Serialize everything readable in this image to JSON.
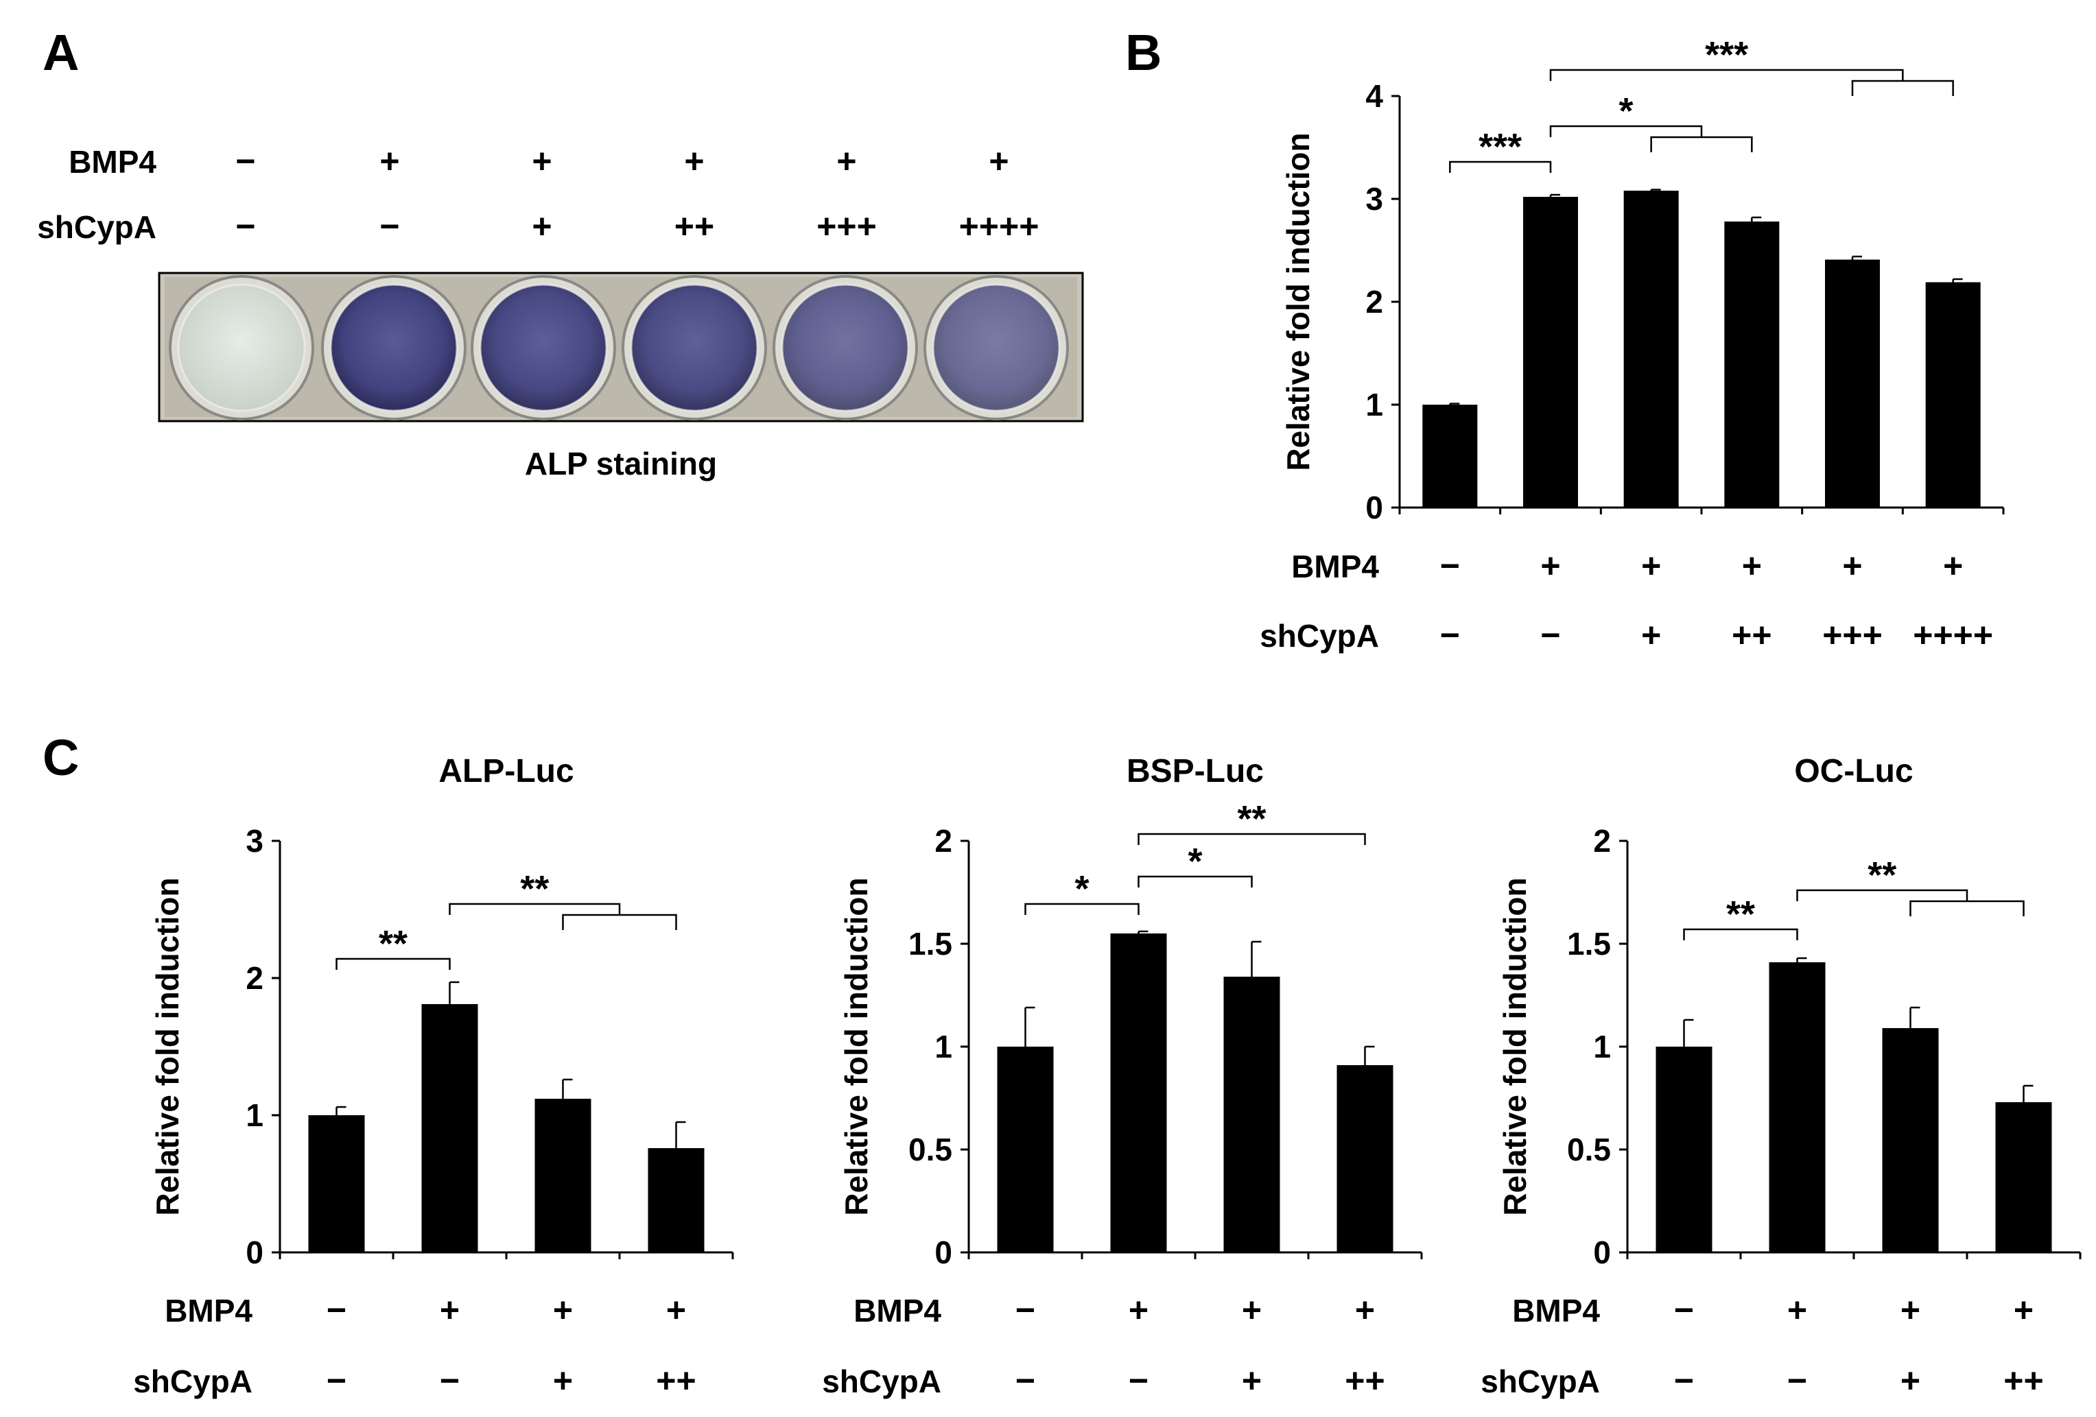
{
  "panels": {
    "A": "A",
    "B": "B",
    "C": "C"
  },
  "row_labels": {
    "bmp4": "BMP4",
    "shcypa": "shCypA"
  },
  "signs6": {
    "bmp4": [
      "−",
      "+",
      "+",
      "+",
      "+",
      "+"
    ],
    "shcypa": [
      "−",
      "−",
      "+",
      "++",
      "+++",
      "++++"
    ]
  },
  "signs4": {
    "bmp4": [
      "−",
      "+",
      "+",
      "+"
    ],
    "shcypa": [
      "−",
      "−",
      "+",
      "++"
    ]
  },
  "panel_a": {
    "caption": "ALP staining",
    "well_intensity": [
      0.0,
      1.0,
      0.95,
      0.9,
      0.65,
      0.55
    ]
  },
  "colors": {
    "bar": "#000000",
    "background": "#ffffff",
    "stain": "#4a4a86"
  },
  "chart_data": [
    {
      "id": "B",
      "type": "bar",
      "title": "",
      "ylabel": "Relative fold induction",
      "ylim": [
        0,
        4
      ],
      "yticks": [
        0,
        1,
        2,
        3,
        4
      ],
      "ytick_labels": [
        "0",
        "1",
        "2",
        "3",
        "4"
      ],
      "categories": [
        "−/−",
        "+/−",
        "+/+",
        "+/++",
        "+/+++",
        "+/++++"
      ],
      "values": [
        1.0,
        3.02,
        3.08,
        2.78,
        2.41,
        2.19
      ],
      "errors": [
        0.01,
        0.02,
        0.01,
        0.04,
        0.03,
        0.03
      ],
      "significance": [
        {
          "label": "***",
          "from": [
            0
          ],
          "to": [
            1
          ]
        },
        {
          "label": "*",
          "from": [
            1
          ],
          "to": [
            2,
            3
          ]
        },
        {
          "label": "***",
          "from": [
            1
          ],
          "to": [
            4,
            5
          ]
        }
      ]
    },
    {
      "id": "C1",
      "type": "bar",
      "title": "ALP-Luc",
      "ylabel": "Relative fold induction",
      "ylim": [
        0,
        3
      ],
      "yticks": [
        0,
        1,
        2,
        3
      ],
      "ytick_labels": [
        "0",
        "1",
        "2",
        "3"
      ],
      "categories": [
        "−/−",
        "+/−",
        "+/+",
        "+/++"
      ],
      "values": [
        1.0,
        1.81,
        1.12,
        0.76
      ],
      "errors": [
        0.06,
        0.16,
        0.14,
        0.19
      ],
      "significance": [
        {
          "label": "**",
          "from": [
            0
          ],
          "to": [
            1
          ]
        },
        {
          "label": "**",
          "from": [
            1
          ],
          "to": [
            2,
            3
          ]
        }
      ]
    },
    {
      "id": "C2",
      "type": "bar",
      "title": "BSP-Luc",
      "ylabel": "Relative fold induction",
      "ylim": [
        0,
        2
      ],
      "yticks": [
        0,
        0.5,
        1,
        1.5,
        2
      ],
      "ytick_labels": [
        "0",
        "0.5",
        "1",
        "1.5",
        "2"
      ],
      "categories": [
        "−/−",
        "+/−",
        "+/+",
        "+/++"
      ],
      "values": [
        1.0,
        1.55,
        1.34,
        0.91
      ],
      "errors": [
        0.19,
        0.01,
        0.17,
        0.09
      ],
      "significance": [
        {
          "label": "*",
          "from": [
            0
          ],
          "to": [
            1
          ]
        },
        {
          "label": "*",
          "from": [
            1
          ],
          "to": [
            2
          ]
        },
        {
          "label": "**",
          "from": [
            1
          ],
          "to": [
            3
          ]
        }
      ]
    },
    {
      "id": "C3",
      "type": "bar",
      "title": "OC-Luc",
      "ylabel": "Relative fold induction",
      "ylim": [
        0,
        2
      ],
      "yticks": [
        0,
        0.5,
        1,
        1.5,
        2
      ],
      "ytick_labels": [
        "0",
        "0.5",
        "1",
        "1.5",
        "2"
      ],
      "categories": [
        "−/−",
        "+/−",
        "+/+",
        "+/++"
      ],
      "values": [
        1.0,
        1.41,
        1.09,
        0.73
      ],
      "errors": [
        0.13,
        0.02,
        0.1,
        0.08
      ],
      "significance": [
        {
          "label": "**",
          "from": [
            0
          ],
          "to": [
            1
          ]
        },
        {
          "label": "**",
          "from": [
            1
          ],
          "to": [
            2,
            3
          ]
        }
      ]
    }
  ]
}
